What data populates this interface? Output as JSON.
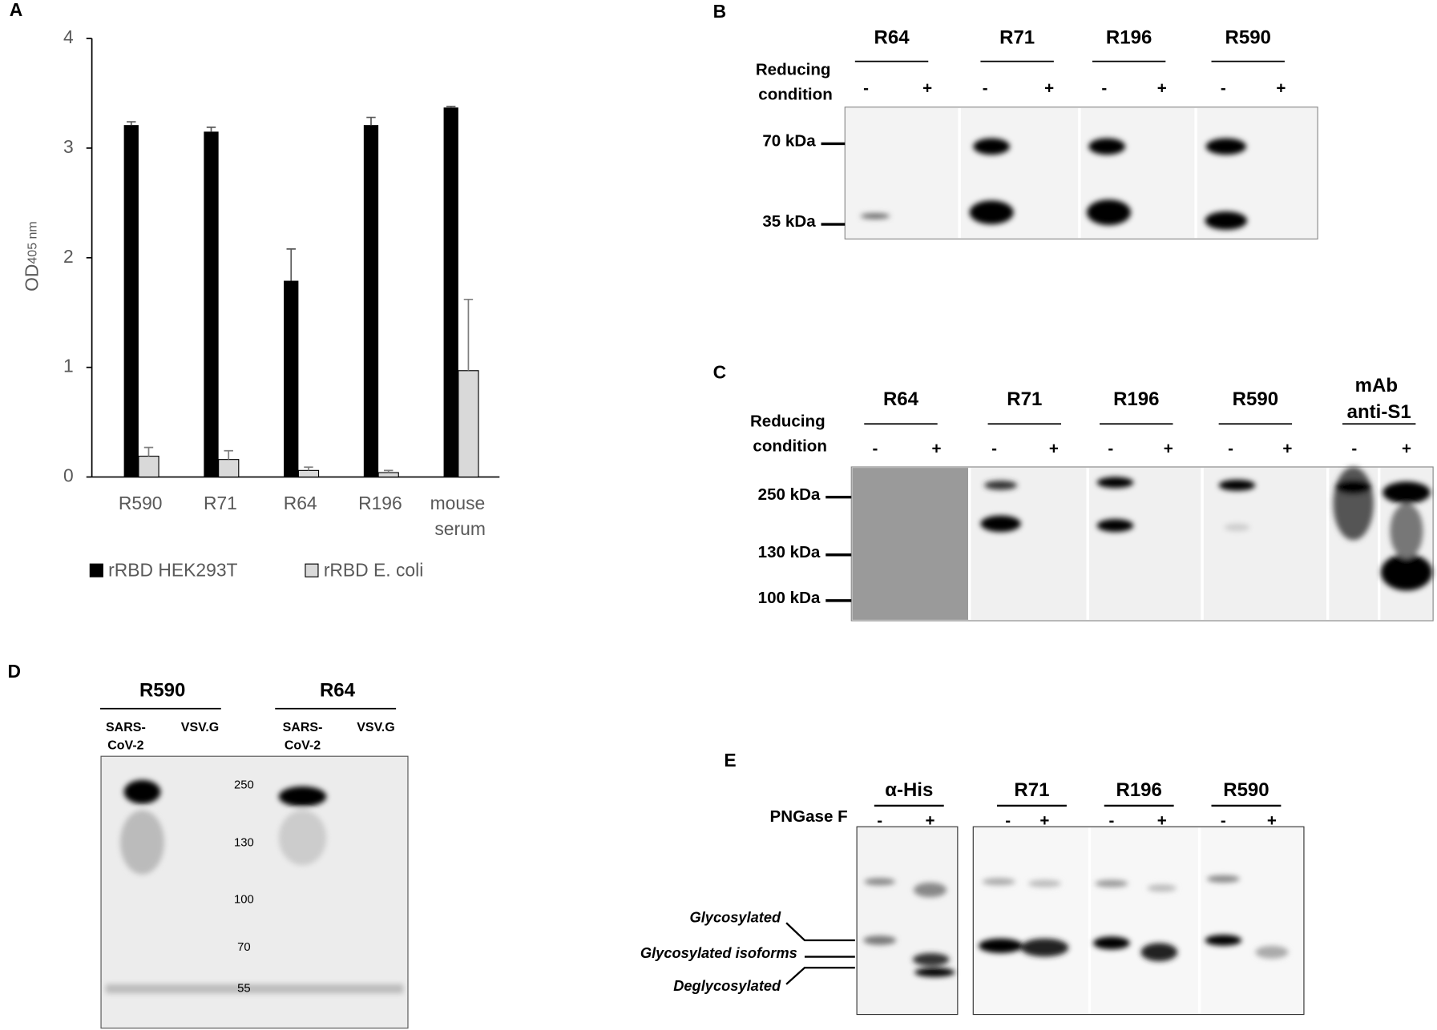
{
  "chart_data": {
    "type": "bar",
    "panel_label": "A",
    "y_label": "OD",
    "y_label_sub": "405 nm",
    "categories": [
      "R590",
      "R71",
      "R64",
      "R196",
      "mouse serum"
    ],
    "series": [
      {
        "name": "rRBD HEK293T",
        "color": "#000000",
        "values": [
          3.21,
          3.15,
          1.79,
          3.21,
          3.37
        ],
        "errors": [
          0.03,
          0.04,
          0.29,
          0.07,
          0.01
        ]
      },
      {
        "name": "rRBD E. coli",
        "color": "#d9d9d9",
        "values": [
          0.19,
          0.16,
          0.06,
          0.04,
          0.97
        ],
        "errors": [
          0.08,
          0.08,
          0.03,
          0.02,
          0.65
        ]
      }
    ],
    "ylim": [
      0,
      4
    ],
    "yticks": [
      0,
      1,
      2,
      3,
      4
    ]
  },
  "panel_b": {
    "label": "B",
    "antibodies": [
      "R64",
      "R71",
      "R196",
      "R590"
    ],
    "condition": "Reducing condition",
    "signs": [
      "-",
      "+"
    ],
    "markers": [
      "70 kDa",
      "35 kDa"
    ]
  },
  "panel_c": {
    "label": "C",
    "antibodies": [
      "R64",
      "R71",
      "R196",
      "R590",
      "mAb anti-S1"
    ],
    "condition": "Reducing condition",
    "signs": [
      "-",
      "+"
    ],
    "markers": [
      "250 kDa",
      "130 kDa",
      "100 kDa"
    ]
  },
  "panel_d": {
    "label": "D",
    "antibodies": [
      "R590",
      "R64"
    ],
    "lanes": [
      "SARS-CoV-2",
      "VSV.G"
    ],
    "markers": [
      "250",
      "130",
      "100",
      "70",
      "55"
    ]
  },
  "panel_e": {
    "label": "E",
    "antibodies": [
      "α-His",
      "R71",
      "R196",
      "R590"
    ],
    "treatment": "PNGase F",
    "signs": [
      "-",
      "+"
    ],
    "bands": [
      "Glycosylated",
      "Glycosylated isoforms",
      "Deglycosylated"
    ]
  }
}
